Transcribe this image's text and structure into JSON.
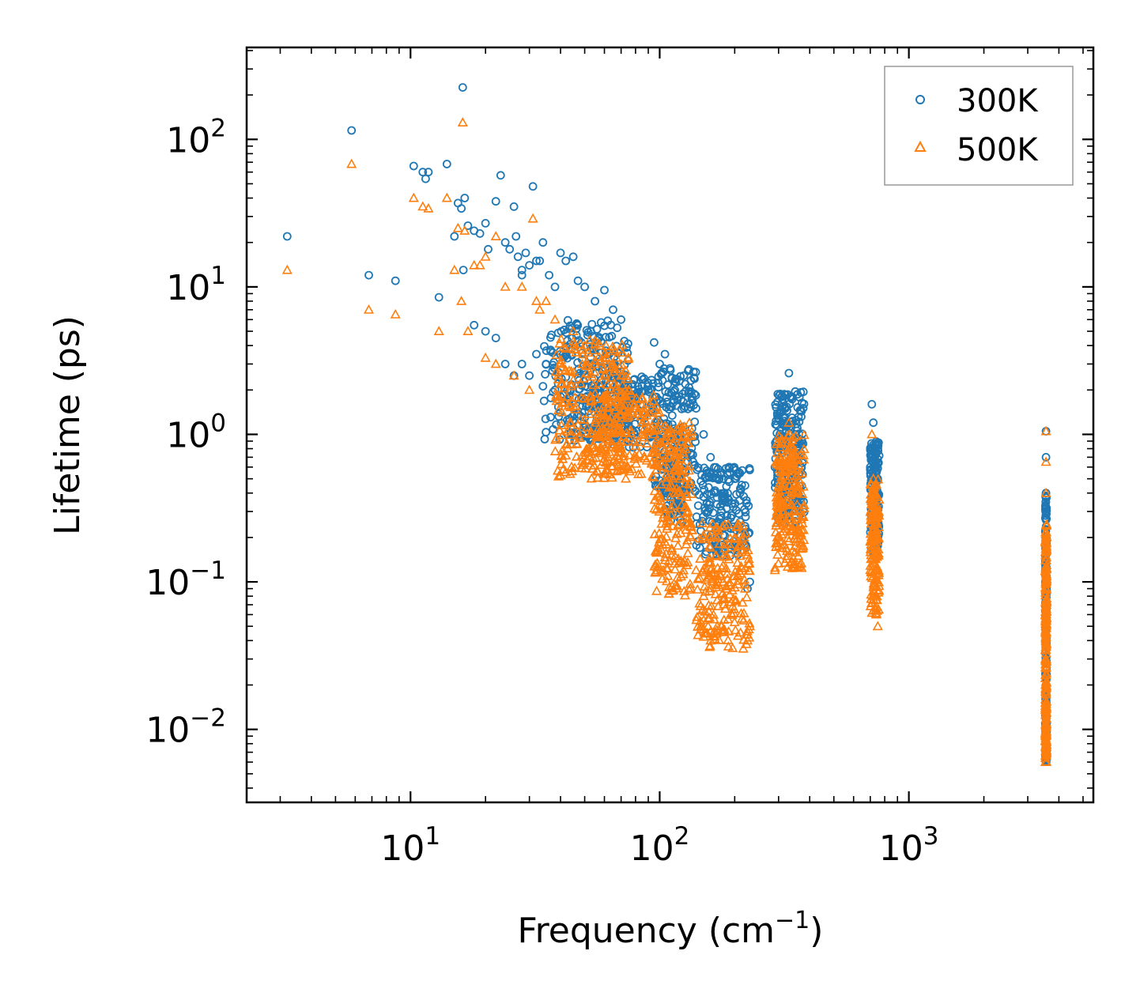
{
  "chart_data": {
    "type": "scatter",
    "title": "",
    "xlabel": "Frequency (cm",
    "xlabel_sup": "−1",
    "xlabel_end": ")",
    "ylabel": "Lifetime (ps)",
    "xscale": "log",
    "yscale": "log",
    "xlim": [
      2.2,
      5500
    ],
    "ylim": [
      0.0032,
      420
    ],
    "x_ticks": [
      {
        "base": "10",
        "exp": "1",
        "value": 10
      },
      {
        "base": "10",
        "exp": "2",
        "value": 100
      },
      {
        "base": "10",
        "exp": "3",
        "value": 1000
      }
    ],
    "y_ticks": [
      {
        "base": "10",
        "exp": "2",
        "value": 100
      },
      {
        "base": "10",
        "exp": "1",
        "value": 10
      },
      {
        "base": "10",
        "exp": "0",
        "value": 1
      },
      {
        "base": "10",
        "exp": "−1",
        "value": 0.1
      },
      {
        "base": "10",
        "exp": "−2",
        "value": 0.01
      }
    ],
    "legend_position": "top-right",
    "series": [
      {
        "name": "300K",
        "marker": "circle",
        "color": "#1f77b4",
        "points": [
          [
            3.2,
            22
          ],
          [
            5.8,
            115
          ],
          [
            6.8,
            12
          ],
          [
            8.7,
            11
          ],
          [
            10.3,
            66
          ],
          [
            11.2,
            60
          ],
          [
            11.8,
            60
          ],
          [
            11.5,
            54
          ],
          [
            13,
            8.5
          ],
          [
            14,
            68
          ],
          [
            15,
            22
          ],
          [
            16.2,
            225
          ],
          [
            16.5,
            40
          ],
          [
            15.5,
            37
          ],
          [
            16,
            34
          ],
          [
            16.3,
            13
          ],
          [
            17,
            26
          ],
          [
            18,
            24
          ],
          [
            19,
            23
          ],
          [
            20,
            27
          ],
          [
            20.5,
            18
          ],
          [
            18,
            5.5
          ],
          [
            20,
            5
          ],
          [
            22,
            4.5
          ],
          [
            22,
            38
          ],
          [
            23,
            57
          ],
          [
            24,
            20
          ],
          [
            25,
            18
          ],
          [
            26,
            35
          ],
          [
            26.5,
            22
          ],
          [
            27,
            16
          ],
          [
            28,
            13
          ],
          [
            28,
            12
          ],
          [
            29,
            17
          ],
          [
            30,
            14
          ],
          [
            31,
            48
          ],
          [
            32,
            15
          ],
          [
            33,
            15
          ],
          [
            34,
            20
          ],
          [
            36,
            12
          ],
          [
            38,
            10
          ],
          [
            40,
            17
          ],
          [
            42,
            15
          ],
          [
            45,
            16
          ],
          [
            47,
            11
          ],
          [
            50,
            10
          ],
          [
            55,
            8
          ],
          [
            60,
            9.5
          ],
          [
            65,
            7
          ],
          [
            70,
            6
          ],
          [
            24,
            3
          ],
          [
            26,
            2.5
          ],
          [
            28,
            3
          ],
          [
            30,
            2.5
          ],
          [
            32,
            3.5
          ],
          [
            35,
            3
          ],
          [
            38,
            2
          ],
          [
            40,
            1.8
          ],
          [
            45,
            1.5
          ],
          [
            50,
            1.3
          ],
          [
            55,
            2
          ],
          [
            60,
            2.5
          ],
          [
            65,
            3
          ],
          [
            70,
            2
          ],
          [
            75,
            1.5
          ],
          [
            80,
            1.8
          ],
          [
            85,
            1.6
          ],
          [
            90,
            2
          ],
          [
            95,
            4.2
          ],
          [
            100,
            3
          ],
          [
            105,
            3.5
          ],
          [
            110,
            2.8
          ],
          [
            115,
            2
          ],
          [
            120,
            2.3
          ],
          [
            125,
            2.5
          ],
          [
            130,
            2.7
          ],
          [
            140,
            1.5
          ],
          [
            150,
            1
          ],
          [
            160,
            0.7
          ],
          [
            170,
            0.5
          ],
          [
            180,
            0.5
          ],
          [
            190,
            0.6
          ],
          [
            200,
            0.5
          ],
          [
            210,
            0.4
          ],
          [
            220,
            0.45
          ],
          [
            225,
            0.09
          ],
          [
            230,
            0.1
          ],
          [
            290,
            0.6
          ],
          [
            300,
            0.8
          ],
          [
            310,
            0.9
          ],
          [
            320,
            1.5
          ],
          [
            330,
            2.6
          ],
          [
            340,
            1.8
          ],
          [
            350,
            1
          ],
          [
            360,
            0.7
          ],
          [
            370,
            0.6
          ],
          [
            700,
            0.6
          ],
          [
            710,
            1.6
          ],
          [
            720,
            1.2
          ],
          [
            730,
            0.8
          ],
          [
            740,
            0.55
          ],
          [
            750,
            0.5
          ],
          [
            3550,
            1.05
          ],
          [
            3550,
            0.7
          ],
          [
            3550,
            0.4
          ],
          [
            3550,
            0.2
          ],
          [
            3550,
            0.1
          ],
          [
            3550,
            0.05
          ],
          [
            3550,
            0.02
          ],
          [
            3550,
            0.007
          ]
        ],
        "clusters": [
          {
            "x_min": 34,
            "x_max": 75,
            "y_min": 0.9,
            "y_max": 6,
            "n": 260
          },
          {
            "x_min": 50,
            "x_max": 100,
            "y_min": 0.8,
            "y_max": 2.5,
            "n": 150
          },
          {
            "x_min": 95,
            "x_max": 140,
            "y_min": 0.4,
            "y_max": 2.8,
            "n": 200
          },
          {
            "x_min": 105,
            "x_max": 125,
            "y_min": 0.25,
            "y_max": 0.6,
            "n": 60
          },
          {
            "x_min": 140,
            "x_max": 230,
            "y_min": 0.15,
            "y_max": 0.6,
            "n": 180
          },
          {
            "x_min": 290,
            "x_max": 380,
            "y_min": 0.25,
            "y_max": 2.0,
            "n": 220
          },
          {
            "x_min": 700,
            "x_max": 760,
            "y_min": 0.15,
            "y_max": 0.9,
            "n": 160
          },
          {
            "x_min": 3530,
            "x_max": 3570,
            "y_min": 0.006,
            "y_max": 0.4,
            "n": 220
          }
        ]
      },
      {
        "name": "500K",
        "marker": "triangle",
        "color": "#ff7f0e",
        "points": [
          [
            3.2,
            13
          ],
          [
            5.8,
            68
          ],
          [
            6.8,
            7
          ],
          [
            8.7,
            6.5
          ],
          [
            10.3,
            40
          ],
          [
            11.2,
            35
          ],
          [
            11.8,
            34
          ],
          [
            13,
            5
          ],
          [
            14,
            40
          ],
          [
            15,
            13
          ],
          [
            15.5,
            25
          ],
          [
            16,
            8
          ],
          [
            16.2,
            130
          ],
          [
            16.5,
            24
          ],
          [
            17,
            5
          ],
          [
            18,
            14
          ],
          [
            19,
            14
          ],
          [
            20,
            16
          ],
          [
            20,
            3.3
          ],
          [
            22,
            3
          ],
          [
            22,
            22
          ],
          [
            24,
            10
          ],
          [
            26,
            2.5
          ],
          [
            28,
            10
          ],
          [
            30,
            2
          ],
          [
            31,
            29
          ],
          [
            32,
            8
          ],
          [
            33,
            7
          ],
          [
            35,
            8
          ],
          [
            38,
            6
          ],
          [
            40,
            3
          ],
          [
            45,
            5
          ],
          [
            50,
            4
          ],
          [
            55,
            3
          ],
          [
            60,
            3.5
          ],
          [
            65,
            3
          ],
          [
            70,
            2.5
          ],
          [
            75,
            2
          ],
          [
            80,
            1.5
          ],
          [
            85,
            1.2
          ],
          [
            90,
            1.1
          ],
          [
            95,
            1
          ],
          [
            100,
            1.2
          ],
          [
            105,
            0.9
          ],
          [
            110,
            0.8
          ],
          [
            120,
            0.5
          ],
          [
            130,
            0.3
          ],
          [
            140,
            0.12
          ],
          [
            150,
            0.08
          ],
          [
            155,
            0.045
          ],
          [
            160,
            0.04
          ],
          [
            170,
            0.05
          ],
          [
            180,
            0.1
          ],
          [
            190,
            0.18
          ],
          [
            200,
            0.2
          ],
          [
            210,
            0.15
          ],
          [
            220,
            0.09
          ],
          [
            225,
            0.04
          ],
          [
            230,
            0.05
          ],
          [
            290,
            0.12
          ],
          [
            300,
            0.3
          ],
          [
            310,
            0.5
          ],
          [
            320,
            0.7
          ],
          [
            330,
            1.2
          ],
          [
            340,
            0.8
          ],
          [
            350,
            0.3
          ],
          [
            360,
            0.15
          ],
          [
            700,
            0.12
          ],
          [
            710,
            1
          ],
          [
            720,
            0.5
          ],
          [
            730,
            0.3
          ],
          [
            740,
            0.06
          ],
          [
            750,
            0.05
          ],
          [
            3550,
            1.05
          ],
          [
            3550,
            0.65
          ],
          [
            3550,
            0.4
          ],
          [
            3550,
            0.2
          ],
          [
            3550,
            0.1
          ],
          [
            3550,
            0.05
          ],
          [
            3550,
            0.02
          ],
          [
            3550,
            0.006
          ]
        ],
        "clusters": [
          {
            "x_min": 38,
            "x_max": 75,
            "y_min": 0.5,
            "y_max": 4.5,
            "n": 260
          },
          {
            "x_min": 55,
            "x_max": 100,
            "y_min": 0.5,
            "y_max": 2.0,
            "n": 150
          },
          {
            "x_min": 95,
            "x_max": 135,
            "y_min": 0.08,
            "y_max": 1.2,
            "n": 220
          },
          {
            "x_min": 140,
            "x_max": 230,
            "y_min": 0.035,
            "y_max": 0.25,
            "n": 200
          },
          {
            "x_min": 290,
            "x_max": 380,
            "y_min": 0.12,
            "y_max": 1.0,
            "n": 220
          },
          {
            "x_min": 700,
            "x_max": 760,
            "y_min": 0.06,
            "y_max": 0.5,
            "n": 170
          },
          {
            "x_min": 3530,
            "x_max": 3570,
            "y_min": 0.006,
            "y_max": 0.25,
            "n": 220
          }
        ]
      }
    ]
  }
}
